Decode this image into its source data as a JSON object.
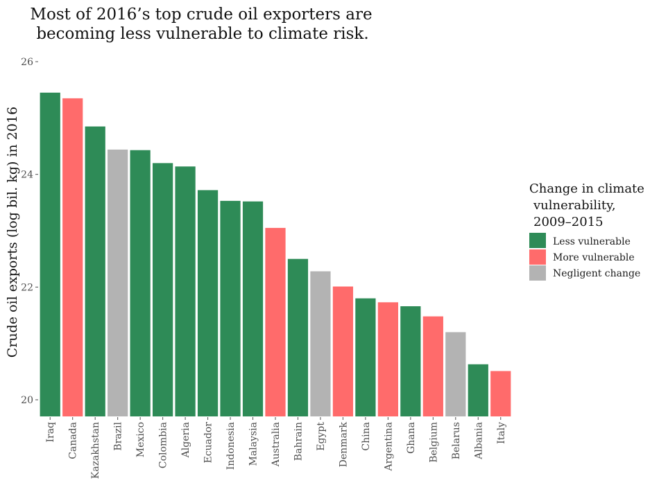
{
  "chart_data": {
    "type": "bar",
    "title_lines": [
      "Most of 2016’s top crude oil exporters are",
      "becoming less vulnerable to climate risk."
    ],
    "xlabel": "",
    "ylabel": "Crude oil exports (log bil. kg) in 2016",
    "ylim": [
      19.7,
      26.1
    ],
    "yticks": [
      20,
      22,
      24,
      26
    ],
    "grid": false,
    "legend_position": "right",
    "legend": {
      "title_lines": [
        "Change in climate",
        "vulnerability,",
        "2009–2015"
      ],
      "entries": [
        {
          "key": "less",
          "label": "Less vulnerable",
          "color": "#2E8B57"
        },
        {
          "key": "more",
          "label": "More vulnerable",
          "color": "#FF6B6B"
        },
        {
          "key": "negligible",
          "label": "Negligent change",
          "color": "#B3B3B3"
        }
      ]
    },
    "categories": [
      "Iraq",
      "Canada",
      "Kazakhstan",
      "Brazil",
      "Mexico",
      "Colombia",
      "Algeria",
      "Ecuador",
      "Indonesia",
      "Malaysia",
      "Australia",
      "Bahrain",
      "Egypt",
      "Denmark",
      "China",
      "Argentina",
      "Ghana",
      "Belgium",
      "Belarus",
      "Albania",
      "Italy"
    ],
    "values": [
      25.45,
      25.35,
      24.85,
      24.44,
      24.43,
      24.2,
      24.14,
      23.72,
      23.53,
      23.52,
      23.05,
      22.5,
      22.28,
      22.01,
      21.8,
      21.73,
      21.66,
      21.48,
      21.2,
      20.63,
      20.51
    ],
    "groups": [
      "less",
      "more",
      "less",
      "negligible",
      "less",
      "less",
      "less",
      "less",
      "less",
      "less",
      "more",
      "less",
      "negligible",
      "more",
      "less",
      "more",
      "less",
      "more",
      "negligible",
      "less",
      "more"
    ]
  }
}
